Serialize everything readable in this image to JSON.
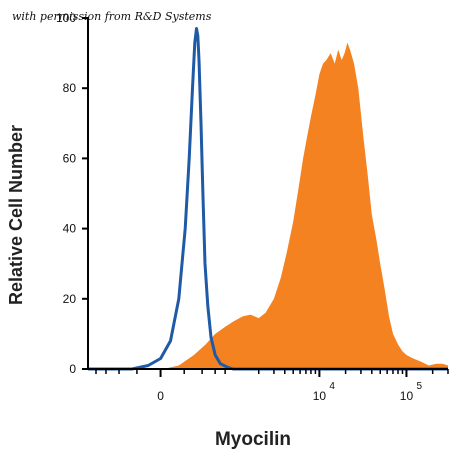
{
  "credit": "with permission from R&D Systems",
  "colors": {
    "isotype": "#1f5aa6",
    "antibody": "#f58220",
    "axis": "#000000"
  },
  "chart_data": {
    "type": "area",
    "xlabel": "Myocilin",
    "ylabel": "Relative Cell Number",
    "x_scale": "biexponential",
    "xlim": [
      -1000,
      300000
    ],
    "ylim": [
      0,
      100
    ],
    "x_ticks": [
      {
        "value": 0,
        "base": "0",
        "exp": ""
      },
      {
        "value": 10000,
        "base": "10",
        "exp": "4"
      },
      {
        "value": 100000,
        "base": "10",
        "exp": "5"
      }
    ],
    "y_ticks": [
      0,
      20,
      40,
      60,
      80,
      100
    ],
    "series": [
      {
        "style": "line",
        "color": "#1f5aa6",
        "points": [
          [
            -1000,
            0
          ],
          [
            -250,
            0
          ],
          [
            -100,
            1
          ],
          [
            0,
            3
          ],
          [
            80,
            8
          ],
          [
            150,
            20
          ],
          [
            210,
            40
          ],
          [
            250,
            60
          ],
          [
            285,
            80
          ],
          [
            310,
            93
          ],
          [
            330,
            97
          ],
          [
            345,
            95
          ],
          [
            360,
            88
          ],
          [
            385,
            70
          ],
          [
            410,
            50
          ],
          [
            440,
            30
          ],
          [
            480,
            18
          ],
          [
            530,
            9
          ],
          [
            600,
            4
          ],
          [
            700,
            1.5
          ],
          [
            850,
            0.5
          ],
          [
            1000,
            0
          ],
          [
            2000,
            0
          ],
          [
            300000,
            0
          ]
        ]
      },
      {
        "style": "area",
        "color": "#f58220",
        "points": [
          [
            -1000,
            0
          ],
          [
            20,
            0
          ],
          [
            150,
            1
          ],
          [
            300,
            4
          ],
          [
            450,
            7
          ],
          [
            600,
            10
          ],
          [
            800,
            12
          ],
          [
            1000,
            13.5
          ],
          [
            1300,
            15
          ],
          [
            1600,
            15.5
          ],
          [
            2000,
            14.5
          ],
          [
            2400,
            16
          ],
          [
            3000,
            20
          ],
          [
            3600,
            26
          ],
          [
            4200,
            33
          ],
          [
            5000,
            42
          ],
          [
            5800,
            52
          ],
          [
            6500,
            60
          ],
          [
            7200,
            66
          ],
          [
            8000,
            72
          ],
          [
            9000,
            78
          ],
          [
            10000,
            84
          ],
          [
            11000,
            87
          ],
          [
            12000,
            88
          ],
          [
            13500,
            90
          ],
          [
            15000,
            87
          ],
          [
            16500,
            91
          ],
          [
            18000,
            88
          ],
          [
            19500,
            90
          ],
          [
            21000,
            93
          ],
          [
            22500,
            91
          ],
          [
            25000,
            87
          ],
          [
            28000,
            80
          ],
          [
            32000,
            66
          ],
          [
            36000,
            55
          ],
          [
            40000,
            44
          ],
          [
            45000,
            37
          ],
          [
            50000,
            30
          ],
          [
            56000,
            23
          ],
          [
            63000,
            15
          ],
          [
            70000,
            10
          ],
          [
            80000,
            7
          ],
          [
            90000,
            5
          ],
          [
            100000,
            4
          ],
          [
            120000,
            3
          ],
          [
            150000,
            2
          ],
          [
            180000,
            1
          ],
          [
            220000,
            1.5
          ],
          [
            260000,
            1.5
          ],
          [
            300000,
            1
          ]
        ]
      }
    ]
  }
}
